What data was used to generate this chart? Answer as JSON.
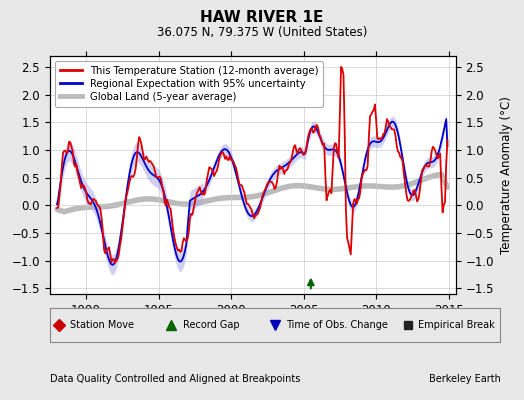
{
  "title": "HAW RIVER 1E",
  "subtitle": "36.075 N, 79.375 W (United States)",
  "ylabel": "Temperature Anomaly (°C)",
  "xlabel_left": "Data Quality Controlled and Aligned at Breakpoints",
  "xlabel_right": "Berkeley Earth",
  "ylim": [
    -1.6,
    2.7
  ],
  "xlim": [
    1987.5,
    2015.5
  ],
  "xticks": [
    1990,
    1995,
    2000,
    2005,
    2010,
    2015
  ],
  "yticks": [
    -1.5,
    -1.0,
    -0.5,
    0.0,
    0.5,
    1.0,
    1.5,
    2.0,
    2.5
  ],
  "bg_color": "#e8e8e8",
  "plot_bg_color": "#ffffff",
  "station_color": "#dd0000",
  "regional_color": "#0000cc",
  "regional_fill_color": "#aaaaee",
  "global_color": "#bbbbbb",
  "record_gap_color": "#006600",
  "obs_change_color": "#0000bb",
  "empirical_break_color": "#222222",
  "station_move_color": "#cc0000"
}
